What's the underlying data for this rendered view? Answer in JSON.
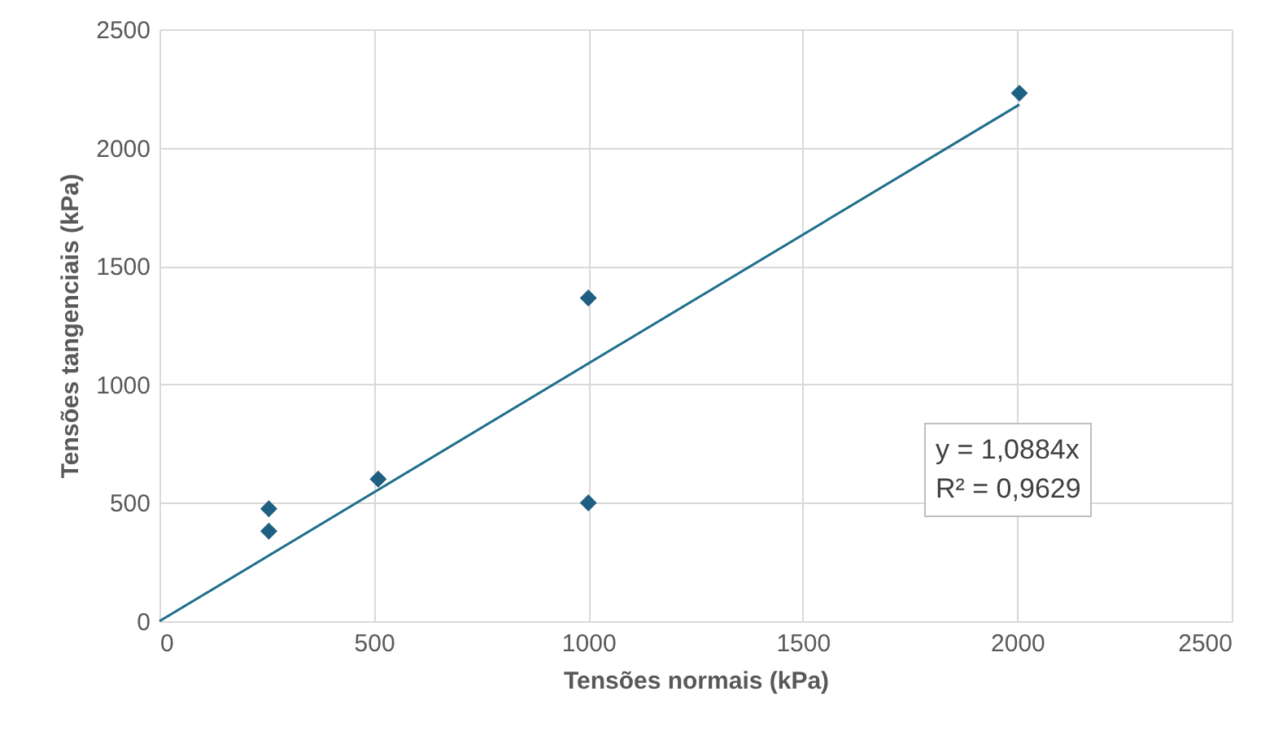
{
  "chart_data": {
    "type": "scatter",
    "xlabel": "Tensões normais (kPa)",
    "ylabel": "Tensões tangenciais (kPa)",
    "x": [
      255,
      255,
      510,
      1000,
      1000,
      2005
    ],
    "series": [
      {
        "type": "scatter",
        "color": "#1f5f82",
        "marker": "diamond",
        "values": [
          475,
          380,
          600,
          1365,
          500,
          2230
        ]
      },
      {
        "type": "line",
        "color": "#1f6f8b",
        "x": [
          0,
          2005
        ],
        "values": [
          0,
          2182
        ],
        "marker": "none",
        "line_style": "solid"
      }
    ],
    "xlim": [
      0,
      2500
    ],
    "xticks": [
      0,
      500,
      1000,
      1500,
      2000,
      2500
    ],
    "ylim": [
      0,
      2500
    ],
    "yticks": [
      0,
      500,
      1000,
      1500,
      2000,
      2500
    ],
    "grid": true,
    "annotations": [
      "y = 1,0884x",
      "R² = 0,9629"
    ]
  }
}
